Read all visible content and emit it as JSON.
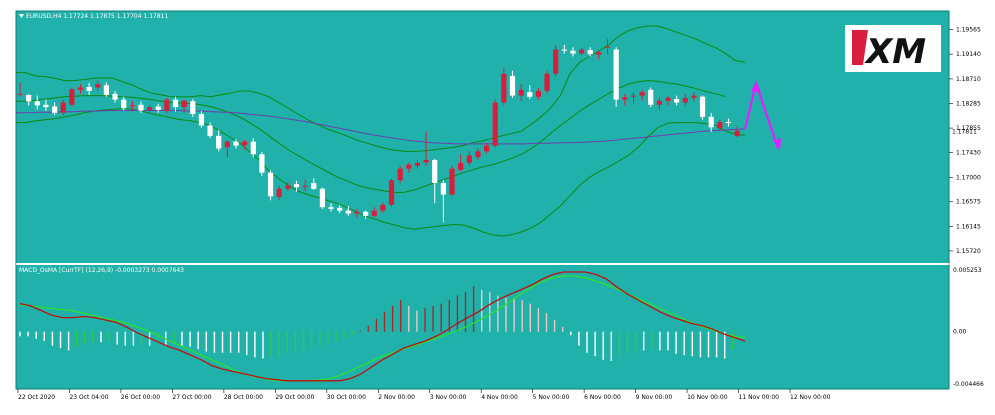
{
  "symbol_label": "EURUSD,H4  1.17724 1.17875 1.17704 1.17811",
  "indicator_label": "MACD_OsMA [CurrTF] (12,26,9) -0.0003273 0.0007643",
  "logo_text": "XM",
  "current_price": "1.17811",
  "colors": {
    "background": "#20b2aa",
    "bull": "#d81e3c",
    "bear": "#ffffff",
    "band": "#0a8a10",
    "ma": "#6a3fb0",
    "macd_line": "#c01010",
    "signal_line": "#28e030",
    "arrow": "#e020ff"
  },
  "chart_data": [
    {
      "type": "candlestick",
      "y_ticks": [
        "1.19565",
        "1.19140",
        "1.18710",
        "1.18285",
        "1.17855",
        "1.17430",
        "1.17000",
        "1.16575",
        "1.16145",
        "1.15720"
      ],
      "y_range": [
        1.1551,
        1.1989
      ],
      "x_ticks": [
        "22 Oct 2020",
        "23 Oct 04:00",
        "26 Oct 00:00",
        "27 Oct 00:00",
        "28 Oct 00:00",
        "29 Oct 00:00",
        "30 Oct 00:00",
        "2 Nov 00:00",
        "3 Nov 00:00",
        "4 Nov 00:00",
        "5 Nov 00:00",
        "6 Nov 00:00",
        "9 Nov 00:00",
        "10 Nov 00:00",
        "11 Nov 00:00",
        "12 Nov 00:00"
      ],
      "candles": [
        [
          1.1845,
          1.1865,
          1.184,
          1.1845
        ],
        [
          1.1843,
          1.1845,
          1.1825,
          1.1832
        ],
        [
          1.1832,
          1.1842,
          1.1818,
          1.1825
        ],
        [
          1.1826,
          1.1835,
          1.1815,
          1.1822
        ],
        [
          1.1823,
          1.183,
          1.1808,
          1.1812
        ],
        [
          1.1812,
          1.1835,
          1.1808,
          1.183
        ],
        [
          1.1826,
          1.1856,
          1.1823,
          1.1853
        ],
        [
          1.1852,
          1.1862,
          1.1845,
          1.1856
        ],
        [
          1.1857,
          1.1864,
          1.1843,
          1.185
        ],
        [
          1.1856,
          1.1868,
          1.185,
          1.1862
        ],
        [
          1.186,
          1.1865,
          1.184,
          1.1843
        ],
        [
          1.1845,
          1.185,
          1.183,
          1.1835
        ],
        [
          1.1835,
          1.184,
          1.1816,
          1.182
        ],
        [
          1.1823,
          1.1833,
          1.1815,
          1.1825
        ],
        [
          1.1826,
          1.1832,
          1.1812,
          1.1816
        ],
        [
          1.1817,
          1.1826,
          1.181,
          1.1822
        ],
        [
          1.1823,
          1.1828,
          1.1812,
          1.1817
        ],
        [
          1.1816,
          1.1838,
          1.1812,
          1.1835
        ],
        [
          1.1835,
          1.184,
          1.1814,
          1.1822
        ],
        [
          1.1822,
          1.1835,
          1.1813,
          1.1833
        ],
        [
          1.1832,
          1.1836,
          1.1805,
          1.181
        ],
        [
          1.181,
          1.1815,
          1.1786,
          1.179
        ],
        [
          1.179,
          1.1795,
          1.1768,
          1.1772
        ],
        [
          1.1772,
          1.1782,
          1.1745,
          1.175
        ],
        [
          1.1752,
          1.1765,
          1.1735,
          1.1762
        ],
        [
          1.1762,
          1.1766,
          1.175,
          1.1755
        ],
        [
          1.1756,
          1.1765,
          1.1748,
          1.1762
        ],
        [
          1.1762,
          1.1768,
          1.1735,
          1.174
        ],
        [
          1.174,
          1.1744,
          1.1702,
          1.1708
        ],
        [
          1.1708,
          1.1712,
          1.166,
          1.1667
        ],
        [
          1.1666,
          1.1685,
          1.166,
          1.168
        ],
        [
          1.168,
          1.1692,
          1.1676,
          1.1686
        ],
        [
          1.1688,
          1.1694,
          1.1675,
          1.1683
        ],
        [
          1.1685,
          1.1696,
          1.1676,
          1.1685
        ],
        [
          1.169,
          1.1698,
          1.1678,
          1.168
        ],
        [
          1.168,
          1.1682,
          1.1645,
          1.1648
        ],
        [
          1.1648,
          1.1655,
          1.164,
          1.1645
        ],
        [
          1.1647,
          1.1652,
          1.1638,
          1.1642
        ],
        [
          1.1642,
          1.165,
          1.1633,
          1.1637
        ],
        [
          1.1637,
          1.1645,
          1.163,
          1.164
        ],
        [
          1.164,
          1.1642,
          1.1628,
          1.1633
        ],
        [
          1.1633,
          1.1648,
          1.163,
          1.1642
        ],
        [
          1.1642,
          1.1656,
          1.1638,
          1.1652
        ],
        [
          1.1652,
          1.1698,
          1.1648,
          1.1695
        ],
        [
          1.1695,
          1.172,
          1.169,
          1.1715
        ],
        [
          1.1715,
          1.1725,
          1.1708,
          1.1722
        ],
        [
          1.172,
          1.173,
          1.1715,
          1.1725
        ],
        [
          1.1726,
          1.178,
          1.172,
          1.173
        ],
        [
          1.173,
          1.1732,
          1.1655,
          1.169
        ],
        [
          1.169,
          1.1695,
          1.1622,
          1.167
        ],
        [
          1.167,
          1.172,
          1.1668,
          1.1715
        ],
        [
          1.1713,
          1.174,
          1.171,
          1.1725
        ],
        [
          1.1725,
          1.1745,
          1.172,
          1.1738
        ],
        [
          1.1735,
          1.175,
          1.173,
          1.1745
        ],
        [
          1.1745,
          1.176,
          1.1742,
          1.1755
        ],
        [
          1.1755,
          1.1835,
          1.1752,
          1.183
        ],
        [
          1.183,
          1.189,
          1.1825,
          1.188
        ],
        [
          1.1876,
          1.1885,
          1.1838,
          1.1842
        ],
        [
          1.1842,
          1.1862,
          1.1832,
          1.1852
        ],
        [
          1.1848,
          1.186,
          1.1836,
          1.184
        ],
        [
          1.184,
          1.1855,
          1.1835,
          1.185
        ],
        [
          1.185,
          1.1885,
          1.1845,
          1.188
        ],
        [
          1.188,
          1.193,
          1.1875,
          1.1922
        ],
        [
          1.1922,
          1.193,
          1.1915,
          1.192
        ],
        [
          1.192,
          1.1926,
          1.191,
          1.1915
        ],
        [
          1.1915,
          1.1925,
          1.1912,
          1.1922
        ],
        [
          1.1921,
          1.1926,
          1.191,
          1.1914
        ],
        [
          1.1913,
          1.192,
          1.1905,
          1.1917
        ],
        [
          1.1925,
          1.194,
          1.1915,
          1.1927
        ],
        [
          1.1922,
          1.1926,
          1.1822,
          1.1835
        ],
        [
          1.1835,
          1.1845,
          1.1825,
          1.1839
        ],
        [
          1.184,
          1.1848,
          1.1828,
          1.1842
        ],
        [
          1.1842,
          1.1852,
          1.1833,
          1.1848
        ],
        [
          1.1852,
          1.1856,
          1.1822,
          1.1826
        ],
        [
          1.1826,
          1.1838,
          1.1818,
          1.1833
        ],
        [
          1.1833,
          1.1842,
          1.1825,
          1.1838
        ],
        [
          1.1836,
          1.1842,
          1.1825,
          1.183
        ],
        [
          1.183,
          1.1845,
          1.1825,
          1.1838
        ],
        [
          1.1838,
          1.1848,
          1.1832,
          1.1842
        ],
        [
          1.184,
          1.1842,
          1.18,
          1.1805
        ],
        [
          1.1805,
          1.1812,
          1.1779,
          1.1787
        ],
        [
          1.1785,
          1.18,
          1.178,
          1.1796
        ],
        [
          1.1796,
          1.1802,
          1.1788,
          1.1795
        ],
        [
          1.1772,
          1.1788,
          1.177,
          1.1781
        ]
      ],
      "bollinger_upper": [
        1.1882,
        1.1882,
        1.1876,
        1.1875,
        1.1872,
        1.1868,
        1.1868,
        1.187,
        1.1872,
        1.1873,
        1.1872,
        1.1866,
        1.186,
        1.1852,
        1.1846,
        1.1843,
        1.184,
        1.184,
        1.184,
        1.1842,
        1.184,
        1.1843,
        1.1846,
        1.185,
        1.185,
        1.1846,
        1.184,
        1.183,
        1.182,
        1.181,
        1.18,
        1.1792,
        1.1784,
        1.1778,
        1.1772,
        1.1765,
        1.176,
        1.1755,
        1.175,
        1.1747,
        1.1745,
        1.1745,
        1.1746,
        1.1748,
        1.175,
        1.1752,
        1.1755,
        1.176,
        1.1763,
        1.1768,
        1.1772,
        1.1776,
        1.178,
        1.1792,
        1.1805,
        1.182,
        1.1842,
        1.188,
        1.19,
        1.191,
        1.192,
        1.193,
        1.1945,
        1.1955,
        1.196,
        1.1963,
        1.1963,
        1.1958,
        1.1952,
        1.1946,
        1.194,
        1.1932,
        1.1925,
        1.1915,
        1.1903,
        1.19
      ],
      "bollinger_lower": [
        1.1795,
        1.1795,
        1.1798,
        1.18,
        1.1802,
        1.1805,
        1.1808,
        1.1812,
        1.1815,
        1.1817,
        1.1818,
        1.182,
        1.1818,
        1.1815,
        1.181,
        1.1807,
        1.1803,
        1.18,
        1.1798,
        1.1795,
        1.179,
        1.178,
        1.177,
        1.176,
        1.1745,
        1.173,
        1.1712,
        1.1698,
        1.1686,
        1.1676,
        1.167,
        1.1665,
        1.166,
        1.1655,
        1.1648,
        1.164,
        1.1632,
        1.1627,
        1.1621,
        1.1617,
        1.1612,
        1.161,
        1.1612,
        1.1614,
        1.1616,
        1.1618,
        1.1617,
        1.1612,
        1.1605,
        1.16,
        1.1598,
        1.16,
        1.1605,
        1.1612,
        1.1622,
        1.1636,
        1.165,
        1.1668,
        1.1686,
        1.17,
        1.171,
        1.1718,
        1.1728,
        1.1738,
        1.1752,
        1.177,
        1.1786,
        1.1794,
        1.1795,
        1.1795,
        1.1795,
        1.1793,
        1.179,
        1.178,
        1.1775,
        1.1773
      ],
      "bollinger_mid": [
        1.1832,
        1.1832,
        1.1834,
        1.1836,
        1.1838,
        1.184,
        1.1841,
        1.1842,
        1.1842,
        1.1842,
        1.1841,
        1.184,
        1.1839,
        1.1837,
        1.1835,
        1.1832,
        1.183,
        1.1829,
        1.1828,
        1.1826,
        1.1823,
        1.1818,
        1.1812,
        1.1805,
        1.1795,
        1.1785,
        1.1772,
        1.176,
        1.1748,
        1.1738,
        1.1728,
        1.1719,
        1.171,
        1.1701,
        1.1694,
        1.1687,
        1.1682,
        1.1679,
        1.1676,
        1.1673,
        1.1674,
        1.1678,
        1.1684,
        1.169,
        1.1696,
        1.1702,
        1.1708,
        1.1713,
        1.1718,
        1.1722,
        1.1727,
        1.1733,
        1.174,
        1.175,
        1.1762,
        1.1776,
        1.179,
        1.1802,
        1.1815,
        1.1826,
        1.1836,
        1.1846,
        1.1855,
        1.1862,
        1.1866,
        1.1868,
        1.1867,
        1.1864,
        1.1862,
        1.1858,
        1.1854,
        1.1849,
        1.1845,
        1.184
      ],
      "moving_average": [
        1.1812,
        1.1812,
        1.1813,
        1.1813,
        1.1814,
        1.1814,
        1.1815,
        1.1815,
        1.1816,
        1.1816,
        1.1816,
        1.1816,
        1.1816,
        1.1816,
        1.1816,
        1.1815,
        1.1815,
        1.1814,
        1.1813,
        1.1812,
        1.181,
        1.1808,
        1.1806,
        1.1803,
        1.18,
        1.1797,
        1.1793,
        1.1789,
        1.1785,
        1.1781,
        1.1777,
        1.1773,
        1.177,
        1.1767,
        1.1764,
        1.1762,
        1.176,
        1.1759,
        1.1758,
        1.1758,
        1.1758,
        1.1758,
        1.1758,
        1.1758,
        1.1758,
        1.1759,
        1.1759,
        1.176,
        1.176,
        1.1761,
        1.1762,
        1.1763,
        1.1765,
        1.1767,
        1.1769,
        1.1771,
        1.1773,
        1.1775,
        1.1777,
        1.1779,
        1.1781,
        1.1782,
        1.1783,
        1.1784
      ],
      "forecast_arrow_prices": [
        1.1783,
        1.1863,
        1.175
      ]
    },
    {
      "type": "macd_histogram",
      "y_ticks": [
        "0.005253",
        "0.00",
        "-0.004466"
      ],
      "y_range": [
        -0.0049,
        0.0057
      ],
      "histogram": [
        -0.0004,
        -0.0004,
        -0.0006,
        -0.0008,
        -0.0012,
        -0.0014,
        -0.0016,
        -0.0013,
        -0.001,
        -0.0009,
        -0.0009,
        -0.0008,
        -0.0011,
        -0.0012,
        -0.0012,
        -0.0011,
        -0.0012,
        -0.001,
        -0.0012,
        -0.0011,
        -0.0012,
        -0.0013,
        -0.0015,
        -0.0017,
        -0.0018,
        -0.0018,
        -0.0018,
        -0.0018,
        -0.002,
        -0.0022,
        -0.0023,
        -0.0022,
        -0.0021,
        -0.0019,
        -0.0017,
        -0.0015,
        -0.0013,
        -0.0012,
        -0.001,
        -0.0008,
        -0.0006,
        -0.0003,
        0.0001,
        0.0005,
        0.0011,
        0.0017,
        0.0022,
        0.0027,
        0.0022,
        0.0018,
        0.002,
        0.0022,
        0.0024,
        0.0027,
        0.0031,
        0.0034,
        0.0039,
        0.0036,
        0.0034,
        0.0031,
        0.0029,
        0.0028,
        0.0027,
        0.0024,
        0.002,
        0.0016,
        0.001,
        0.0004,
        -0.0003,
        -0.0012,
        -0.0018,
        -0.0021,
        -0.0024,
        -0.0025,
        -0.0022,
        -0.0018,
        -0.0016,
        -0.0016,
        -0.0015,
        -0.0016,
        -0.0016,
        -0.0019,
        -0.002,
        -0.0021,
        -0.0022,
        -0.0022,
        -0.0022,
        -0.0023,
        -0.0015
      ],
      "macd_line": [
        0.0024,
        0.0022,
        0.0018,
        0.0014,
        0.0012,
        0.0012,
        0.0013,
        0.0012,
        0.001,
        0.0008,
        0.0004,
        -0.0001,
        -0.0005,
        -0.0009,
        -0.0013,
        -0.0016,
        -0.002,
        -0.0024,
        -0.0029,
        -0.0032,
        -0.0034,
        -0.0036,
        -0.0038,
        -0.004,
        -0.0041,
        -0.0042,
        -0.0042,
        -0.0042,
        -0.0042,
        -0.0042,
        -0.0042,
        -0.004,
        -0.0036,
        -0.003,
        -0.0024,
        -0.0019,
        -0.0014,
        -0.0011,
        -0.0008,
        -0.0004,
        0.0001,
        0.0007,
        0.0012,
        0.0017,
        0.0023,
        0.0028,
        0.0032,
        0.0036,
        0.004,
        0.0045,
        0.0049,
        0.0051,
        0.0051,
        0.0051,
        0.0049,
        0.0045,
        0.0038,
        0.0032,
        0.0027,
        0.0022,
        0.0017,
        0.0013,
        0.001,
        0.0007,
        0.0005,
        0.0002,
        -0.0002,
        -0.0005,
        -0.0008
      ],
      "signal_line": [
        0.0023,
        0.0022,
        0.0021,
        0.002,
        0.0019,
        0.0018,
        0.0016,
        0.0014,
        0.0012,
        0.001,
        0.0008,
        0.0005,
        0.0002,
        -0.0002,
        -0.0006,
        -0.001,
        -0.0014,
        -0.0018,
        -0.0022,
        -0.0026,
        -0.003,
        -0.0034,
        -0.0037,
        -0.0039,
        -0.0041,
        -0.0042,
        -0.0042,
        -0.0042,
        -0.0042,
        -0.0041,
        -0.004,
        -0.0037,
        -0.0033,
        -0.0029,
        -0.0025,
        -0.0021,
        -0.0018,
        -0.0015,
        -0.0012,
        -0.0009,
        -0.0006,
        -0.0003,
        0.0,
        0.0004,
        0.0008,
        0.0013,
        0.0018,
        0.0024,
        0.003,
        0.0036,
        0.0041,
        0.0045,
        0.0047,
        0.0048,
        0.0047,
        0.0045,
        0.0042,
        0.0039,
        0.0035,
        0.0031,
        0.0027,
        0.0023,
        0.0019,
        0.0015,
        0.0011,
        0.0007,
        0.0004,
        0.0001,
        -0.0002,
        -0.0004,
        -0.0005
      ]
    }
  ]
}
